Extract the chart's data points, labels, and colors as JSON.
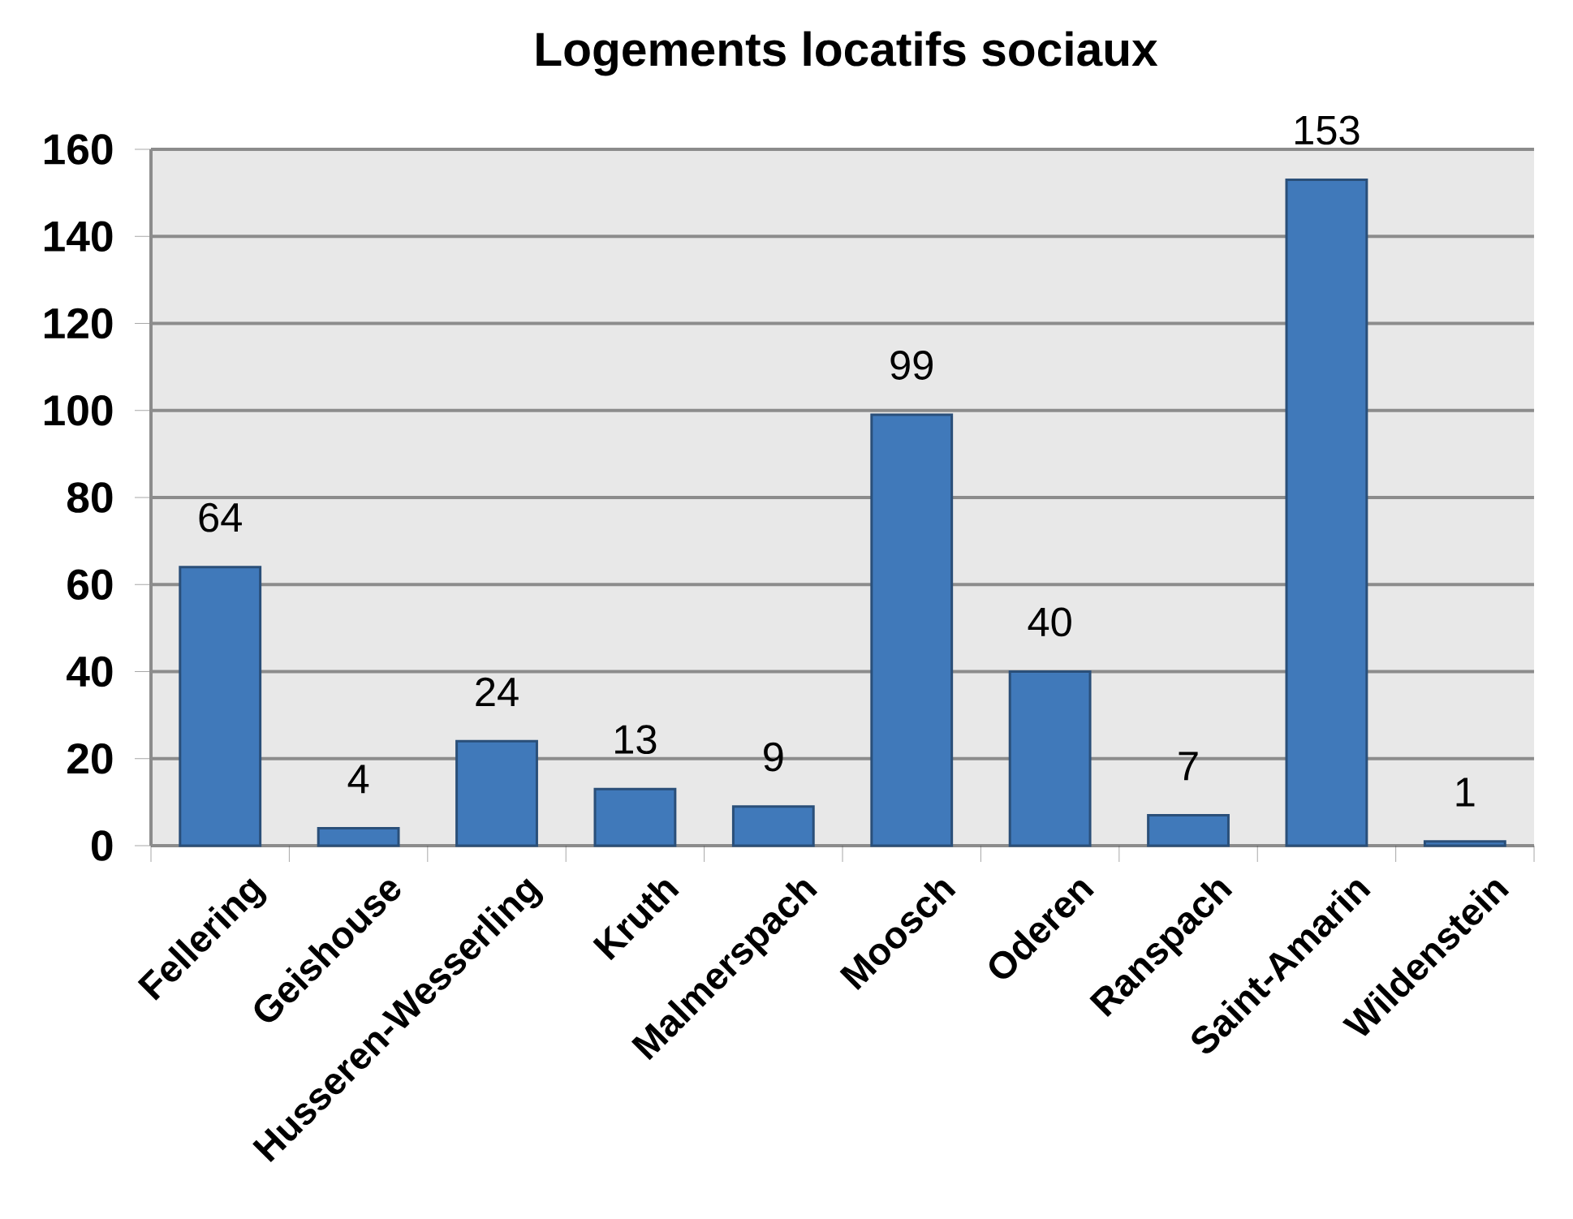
{
  "chart_data": {
    "type": "bar",
    "title": "Logements locatifs sociaux",
    "categories": [
      "Fellering",
      "Geishouse",
      "Husseren-Wesserling",
      "Kruth",
      "Malmerspach",
      "Moosch",
      "Oderen",
      "Ranspach",
      "Saint-Amarin",
      "Wildenstein"
    ],
    "values": [
      64,
      4,
      24,
      13,
      9,
      99,
      40,
      7,
      153,
      1
    ],
    "color": "#4079ba",
    "ylim": [
      0,
      160
    ],
    "yticks": [
      0,
      20,
      40,
      60,
      80,
      100,
      120,
      140,
      160
    ],
    "grid": "y",
    "data_labels": true
  }
}
